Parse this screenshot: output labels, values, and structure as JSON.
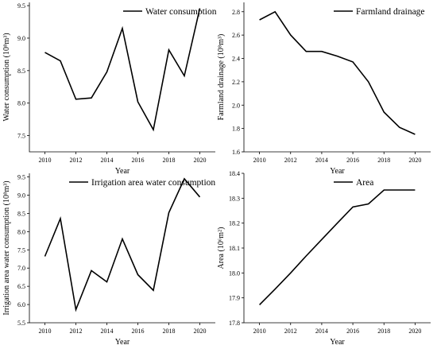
{
  "chart_data": [
    {
      "type": "line",
      "x": [
        2010,
        2011,
        2012,
        2013,
        2014,
        2015,
        2016,
        2017,
        2018,
        2019,
        2020
      ],
      "series": [
        {
          "name": "Water consumption",
          "values": [
            8.78,
            8.65,
            8.06,
            8.08,
            8.48,
            9.15,
            8.02,
            7.59,
            8.82,
            8.42,
            9.46
          ]
        }
      ],
      "xlabel": "Year",
      "ylabel": "Water consumption (10⁸m³)",
      "xlim": [
        2009,
        2021
      ],
      "ylim": [
        7.25,
        9.55
      ],
      "xticks": [
        2010,
        2012,
        2014,
        2016,
        2018,
        2020
      ],
      "yticks": [
        7.5,
        8.0,
        8.5,
        9.0,
        9.5
      ],
      "ytick_labels": [
        "7.5",
        "8.0",
        "8.5",
        "9.0",
        "9.5"
      ],
      "legend_position": "top-right",
      "grid": false
    },
    {
      "type": "line",
      "x": [
        2010,
        2011,
        2012,
        2013,
        2014,
        2015,
        2016,
        2017,
        2018,
        2019,
        2020
      ],
      "series": [
        {
          "name": "Farmland drainage",
          "values": [
            2.73,
            2.8,
            2.6,
            2.46,
            2.46,
            2.42,
            2.37,
            2.2,
            1.94,
            1.81,
            1.75
          ]
        }
      ],
      "xlabel": "Year",
      "ylabel": "Farmland drainage (10⁸m³)",
      "xlim": [
        2009,
        2021
      ],
      "ylim": [
        1.6,
        2.88
      ],
      "xticks": [
        2010,
        2012,
        2014,
        2016,
        2018,
        2020
      ],
      "yticks": [
        1.6,
        1.8,
        2.0,
        2.2,
        2.4,
        2.6,
        2.8
      ],
      "ytick_labels": [
        "1.6",
        "1.8",
        "2.0",
        "2.2",
        "2.4",
        "2.6",
        "2.8"
      ],
      "legend_position": "top-right",
      "grid": false
    },
    {
      "type": "line",
      "x": [
        2010,
        2011,
        2012,
        2013,
        2014,
        2015,
        2016,
        2017,
        2018,
        2019,
        2020
      ],
      "series": [
        {
          "name": "Irrigation area water consumption",
          "values": [
            7.32,
            8.36,
            5.86,
            6.93,
            6.62,
            7.8,
            6.82,
            6.39,
            8.52,
            9.45,
            8.95
          ]
        }
      ],
      "xlabel": "Year",
      "ylabel": "Irrigation area water consumption (10⁸m³)",
      "xlim": [
        2009,
        2021
      ],
      "ylim": [
        5.5,
        9.6
      ],
      "xticks": [
        2010,
        2012,
        2014,
        2016,
        2018,
        2020
      ],
      "yticks": [
        5.5,
        6.0,
        6.5,
        7.0,
        7.5,
        8.0,
        8.5,
        9.0,
        9.5
      ],
      "ytick_labels": [
        "5.5",
        "6.0",
        "6.5",
        "7.0",
        "7.5",
        "8.0",
        "8.5",
        "9.0",
        "9.5"
      ],
      "legend_position": "top-right",
      "grid": false
    },
    {
      "type": "line",
      "x": [
        2010,
        2011,
        2012,
        2013,
        2014,
        2015,
        2016,
        2017,
        2018,
        2019,
        2020
      ],
      "series": [
        {
          "name": "Area",
          "values": [
            17.872,
            17.935,
            18.0,
            18.068,
            18.134,
            18.2,
            18.265,
            18.277,
            18.333,
            18.333,
            18.333
          ]
        }
      ],
      "xlabel": "Year",
      "ylabel": "Area (10⁶m²)",
      "xlim": [
        2009,
        2021
      ],
      "ylim": [
        17.8,
        18.4
      ],
      "xticks": [
        2010,
        2012,
        2014,
        2016,
        2018,
        2020
      ],
      "yticks": [
        17.8,
        17.9,
        18.0,
        18.1,
        18.2,
        18.3,
        18.4
      ],
      "ytick_labels": [
        "17.8",
        "17.9",
        "18.0",
        "18.1",
        "18.2",
        "18.3",
        "18.4"
      ],
      "legend_position": "top-right",
      "grid": false
    }
  ]
}
